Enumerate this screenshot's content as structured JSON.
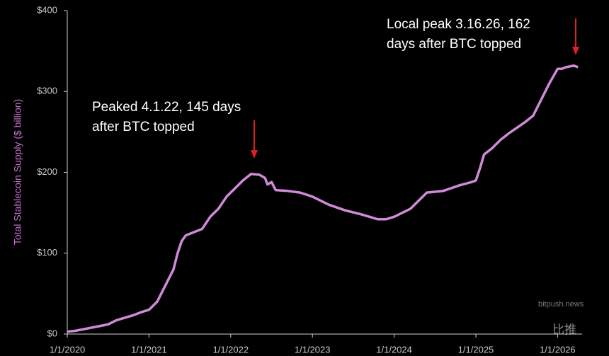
{
  "chart_data": {
    "type": "line",
    "y_label": "Total Stablecoin Supply ($ billion)",
    "xlim": [
      2020,
      2026.3
    ],
    "ylim": [
      0,
      400
    ],
    "xticks": [
      {
        "value": 2020,
        "label": "1/1/2020"
      },
      {
        "value": 2021,
        "label": "1/1/2021"
      },
      {
        "value": 2022,
        "label": "1/1/2022"
      },
      {
        "value": 2023,
        "label": "1/1/2023"
      },
      {
        "value": 2024,
        "label": "1/1/2024"
      },
      {
        "value": 2025,
        "label": "1/1/2025"
      },
      {
        "value": 2026,
        "label": "1/1/2026"
      }
    ],
    "yticks": [
      {
        "value": 0,
        "label": "$0"
      },
      {
        "value": 100,
        "label": "$100"
      },
      {
        "value": 200,
        "label": "$200"
      },
      {
        "value": 300,
        "label": "$300"
      },
      {
        "value": 400,
        "label": "$400"
      }
    ],
    "series": [
      {
        "color": "#d08ad8",
        "x": [
          2020.0,
          2020.1,
          2020.2,
          2020.3,
          2020.4,
          2020.5,
          2020.6,
          2020.7,
          2020.8,
          2020.9,
          2021.0,
          2021.1,
          2021.2,
          2021.3,
          2021.35,
          2021.4,
          2021.45,
          2021.55,
          2021.65,
          2021.75,
          2021.85,
          2021.95,
          2022.05,
          2022.15,
          2022.25,
          2022.35,
          2022.42,
          2022.45,
          2022.5,
          2022.55,
          2022.7,
          2022.85,
          2023.0,
          2023.2,
          2023.4,
          2023.6,
          2023.8,
          2023.9,
          2024.0,
          2024.2,
          2024.3,
          2024.4,
          2024.6,
          2024.8,
          2024.95,
          2025.0,
          2025.05,
          2025.1,
          2025.2,
          2025.3,
          2025.4,
          2025.5,
          2025.6,
          2025.7,
          2025.8,
          2025.9,
          2026.0,
          2026.05,
          2026.1,
          2026.2,
          2026.25
        ],
        "values": [
          3,
          4,
          6,
          8,
          10,
          12,
          17,
          20,
          23,
          27,
          30,
          40,
          60,
          80,
          100,
          115,
          122,
          126,
          130,
          145,
          155,
          170,
          180,
          190,
          198,
          197,
          193,
          185,
          188,
          178,
          177,
          175,
          170,
          160,
          153,
          148,
          142,
          142,
          145,
          155,
          165,
          175,
          177,
          184,
          188,
          190,
          205,
          222,
          230,
          240,
          248,
          255,
          262,
          270,
          290,
          310,
          328,
          328,
          330,
          332,
          330
        ]
      }
    ],
    "annotations": [
      {
        "lines": [
          "Peaked 4.1.22, 145 days",
          "after BTC topped"
        ]
      },
      {
        "lines": [
          "Local peak 3.16.26, 162",
          "days after BTC topped"
        ]
      }
    ],
    "watermark": {
      "name": "比推",
      "site": "bitpush.news"
    }
  }
}
